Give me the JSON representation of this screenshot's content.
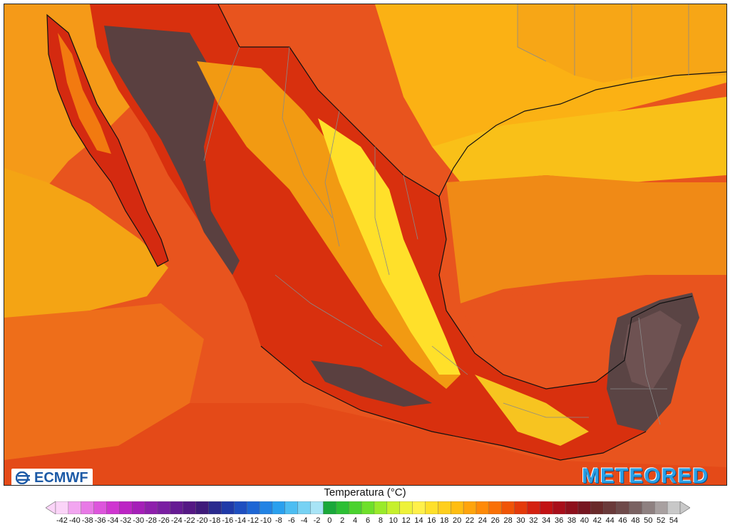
{
  "map": {
    "region": "Mexico",
    "background_color": "#e8541e"
  },
  "logos": {
    "left_text": "ECMWF",
    "right_text": "METEORED"
  },
  "legend": {
    "title": "Temperatura (°C)",
    "ticks": [
      "-42",
      "-40",
      "-38",
      "-36",
      "-34",
      "-32",
      "-30",
      "-28",
      "-26",
      "-24",
      "-22",
      "-20",
      "-18",
      "-16",
      "-14",
      "-12",
      "-10",
      "-8",
      "-6",
      "-4",
      "-2",
      "0",
      "2",
      "4",
      "6",
      "8",
      "10",
      "12",
      "14",
      "16",
      "18",
      "20",
      "22",
      "24",
      "26",
      "28",
      "30",
      "32",
      "34",
      "36",
      "38",
      "40",
      "42",
      "44",
      "46",
      "48",
      "50",
      "52",
      "54"
    ],
    "colors": [
      "#fbd4f8",
      "#f2a6f0",
      "#e87ae6",
      "#dd55dc",
      "#cf36d0",
      "#bc25c4",
      "#a51fb8",
      "#8e1fac",
      "#7a1fa2",
      "#661b93",
      "#551884",
      "#3f1a7a",
      "#2a2a8e",
      "#1f3aa8",
      "#1e4fc0",
      "#1e66d4",
      "#2283e4",
      "#2aa0ee",
      "#4cbdf2",
      "#77d2f4",
      "#a8e4f6",
      "#1aa83a",
      "#2cbf34",
      "#4ad22e",
      "#6ee02a",
      "#9aea2a",
      "#c6f02c",
      "#eef23a",
      "#fff04a",
      "#ffe02a",
      "#ffcf1e",
      "#ffbd12",
      "#ffa40c",
      "#ff8a08",
      "#f97006",
      "#f05406",
      "#e43a0a",
      "#d42210",
      "#c21214",
      "#a80e1a",
      "#8e101c",
      "#761620",
      "#6a2a2a",
      "#6a3a3a",
      "#6e4a4a",
      "#7a6262",
      "#8e8080",
      "#a8a0a0",
      "#c8c8c8"
    ]
  }
}
